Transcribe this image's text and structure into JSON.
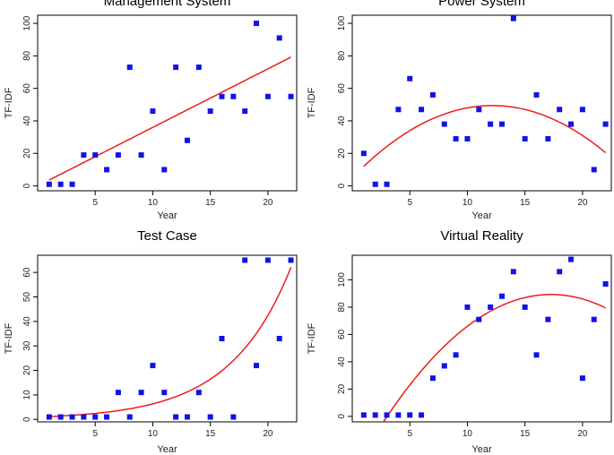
{
  "chart_data": [
    {
      "type": "scatter",
      "title": "Management System",
      "xlabel": "Year",
      "ylabel": "TF-IDF",
      "xlim": [
        0,
        22.5
      ],
      "ylim": [
        -3,
        105
      ],
      "xticks": [
        5,
        10,
        15,
        20
      ],
      "yticks": [
        0,
        20,
        40,
        60,
        80,
        100
      ],
      "grid": false,
      "points": {
        "x": [
          1,
          2,
          3,
          4,
          5,
          6,
          7,
          8,
          9,
          10,
          11,
          12,
          13,
          14,
          15,
          16,
          17,
          18,
          19,
          20,
          21,
          22
        ],
        "y": [
          1,
          1,
          1,
          19,
          19,
          10,
          19,
          73,
          19,
          46,
          10,
          73,
          28,
          73,
          46,
          55,
          55,
          46,
          100,
          55,
          91,
          55
        ]
      },
      "fit": {
        "type": "linear",
        "coef": [
          0,
          3.6
        ]
      }
    },
    {
      "type": "scatter",
      "title": "Power System",
      "xlabel": "Year",
      "ylabel": "TF-IDF",
      "xlim": [
        0,
        22.5
      ],
      "ylim": [
        -3,
        105
      ],
      "xticks": [
        5,
        10,
        15,
        20
      ],
      "yticks": [
        0,
        20,
        40,
        60,
        80,
        100
      ],
      "grid": false,
      "points": {
        "x": [
          1,
          2,
          3,
          4,
          5,
          6,
          7,
          8,
          9,
          10,
          11,
          12,
          13,
          14,
          15,
          16,
          17,
          18,
          19,
          20,
          21,
          22
        ],
        "y": [
          20,
          1,
          1,
          47,
          66,
          47,
          56,
          38,
          29,
          29,
          47,
          38,
          38,
          103,
          29,
          56,
          29,
          47,
          38,
          47,
          10,
          38
        ]
      },
      "fit": {
        "type": "quadratic",
        "coef": [
          5,
          7.3,
          -0.3
        ]
      }
    },
    {
      "type": "scatter",
      "title": "Test Case",
      "xlabel": "Year",
      "ylabel": "TF-IDF",
      "xlim": [
        0,
        22.5
      ],
      "ylim": [
        -1,
        67
      ],
      "xticks": [
        5,
        10,
        15,
        20
      ],
      "yticks": [
        0,
        10,
        20,
        30,
        40,
        50,
        60
      ],
      "grid": false,
      "points": {
        "x": [
          1,
          2,
          3,
          4,
          5,
          6,
          7,
          8,
          9,
          10,
          11,
          12,
          13,
          14,
          15,
          16,
          17,
          18,
          19,
          20,
          21,
          22
        ],
        "y": [
          1,
          1,
          1,
          1,
          1,
          1,
          11,
          1,
          11,
          22,
          11,
          1,
          1,
          11,
          1,
          33,
          1,
          65,
          22,
          65,
          33,
          65
        ]
      },
      "fit": {
        "type": "exponential",
        "coef": [
          0.95,
          0.19
        ]
      }
    },
    {
      "type": "scatter",
      "title": "Virtual Reality",
      "xlabel": "Year",
      "ylabel": "TF-IDF",
      "xlim": [
        0,
        22.5
      ],
      "ylim": [
        -4,
        118
      ],
      "xticks": [
        5,
        10,
        15,
        20
      ],
      "yticks": [
        0,
        20,
        40,
        60,
        80,
        100
      ],
      "grid": false,
      "points": {
        "x": [
          1,
          2,
          3,
          4,
          5,
          6,
          7,
          8,
          9,
          10,
          11,
          12,
          13,
          14,
          15,
          16,
          17,
          18,
          19,
          20,
          21,
          22
        ],
        "y": [
          1,
          1,
          1,
          1,
          1,
          1,
          28,
          37,
          45,
          80,
          71,
          80,
          88,
          106,
          80,
          45,
          71,
          106,
          115,
          28,
          71,
          97
        ]
      },
      "fit": {
        "type": "quadratic",
        "coef": [
          -42,
          15.2,
          -0.44
        ]
      }
    }
  ]
}
